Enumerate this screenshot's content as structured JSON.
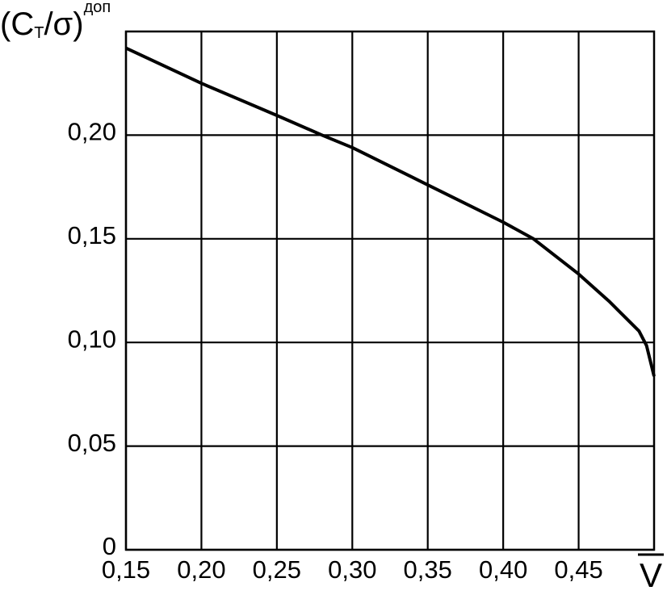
{
  "chart_data": {
    "type": "line",
    "ylabel_parts": [
      "(C",
      "T",
      "/σ)",
      "доп"
    ],
    "xlabel": "V",
    "x": [
      0.15,
      0.2,
      0.25,
      0.28,
      0.3,
      0.35,
      0.4,
      0.42,
      0.45,
      0.47,
      0.49,
      0.495,
      0.5
    ],
    "series": [
      {
        "color": "#000000",
        "values": [
          0.242,
          0.225,
          0.2095,
          0.2,
          0.194,
          0.176,
          0.158,
          0.15,
          0.133,
          0.12,
          0.1055,
          0.0985,
          0.0837
        ]
      }
    ],
    "xlim": [
      0.15,
      0.5
    ],
    "ylim": [
      0,
      0.25
    ],
    "xticks": [
      {
        "value": 0.15,
        "label": "0,15"
      },
      {
        "value": 0.2,
        "label": "0,20"
      },
      {
        "value": 0.25,
        "label": "0,25"
      },
      {
        "value": 0.3,
        "label": "0,30"
      },
      {
        "value": 0.35,
        "label": "0,35"
      },
      {
        "value": 0.4,
        "label": "0,40"
      },
      {
        "value": 0.45,
        "label": "0,45"
      }
    ],
    "yticks": [
      0,
      {
        "value": 0.05,
        "label": "0,05"
      },
      {
        "value": 0.1,
        "label": "0,10"
      },
      {
        "value": 0.15,
        "label": "0,15"
      },
      {
        "value": 0.2,
        "label": "0,20"
      }
    ],
    "grid": true
  }
}
